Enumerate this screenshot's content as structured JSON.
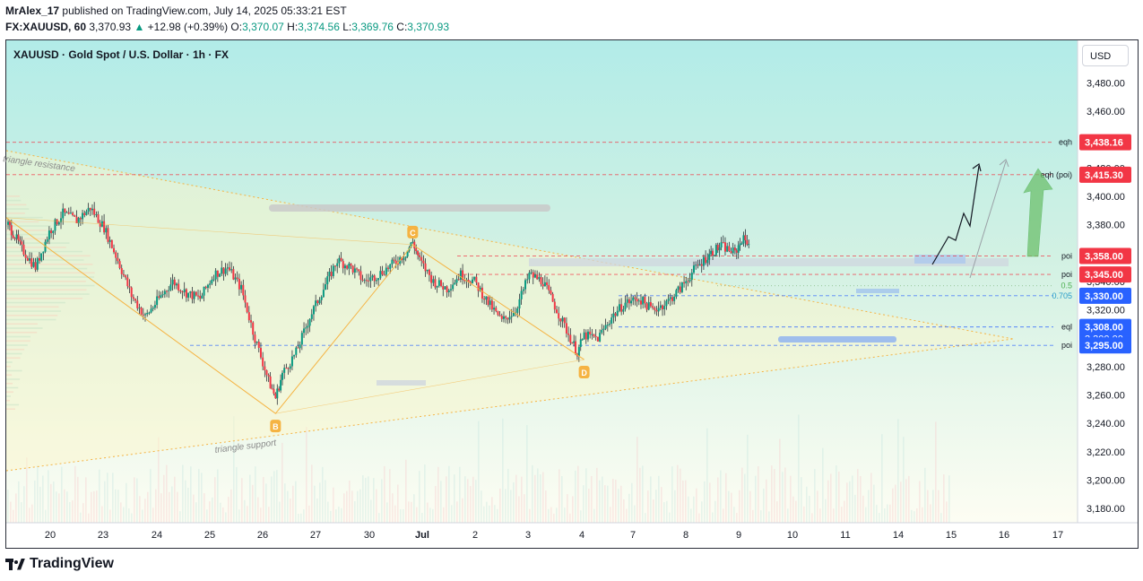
{
  "header": {
    "author": "MrAlex_17",
    "published_text": "published on TradingView.com, July 14, 2025 05:33:21 EST",
    "symbol": "FX:XAUUSD, 60",
    "last": "3,370.93",
    "change_arrow": "▲",
    "change": "+12.98 (+0.39%)",
    "o_label": "O:",
    "o_value": "3,370.07",
    "h_label": "H:",
    "h_value": "3,374.56",
    "l_label": "L:",
    "l_value": "3,369.76",
    "c_label": "C:",
    "c_value": "3,370.93"
  },
  "legend": {
    "title": "XAUUSD · Gold Spot / U.S. Dollar · 1h · FX"
  },
  "currency_button": "USD",
  "footer": {
    "brand": "TradingView"
  },
  "colors": {
    "bull": "#089981",
    "bear": "#f23645",
    "pattern": "#f5b342",
    "red_level": "#f23645",
    "blue_level": "#2962ff",
    "gradient_top": "#b2ece8",
    "gradient_bottom": "#fbfbe6"
  },
  "chart_data": {
    "type": "candlestick",
    "ylim": [
      3170,
      3510
    ],
    "yticks": [
      3180,
      3200,
      3220,
      3240,
      3260,
      3280,
      3300,
      3320,
      3340,
      3360,
      3380,
      3400,
      3420,
      3440,
      3460,
      3480
    ],
    "ytick_labels": [
      "3,180.00",
      "3,200.00",
      "3,220.00",
      "3,240.00",
      "3,260.00",
      "3,280.00",
      "3,300.00",
      "3,320.00",
      "3,340.00",
      "3,360.00",
      "3,380.00",
      "3,400.00",
      "3,420.00",
      "3,440.00",
      "3,460.00",
      "3,480.00"
    ],
    "xticks": [
      "20",
      "23",
      "24",
      "25",
      "26",
      "27",
      "30",
      "Jul",
      "2",
      "3",
      "4",
      "7",
      "8",
      "9",
      "10",
      "11",
      "14",
      "15",
      "16",
      "17"
    ],
    "price_path": [
      [
        0,
        3380
      ],
      [
        0.5,
        3372
      ],
      [
        1,
        3363
      ],
      [
        2,
        3350
      ],
      [
        3,
        3375
      ],
      [
        4,
        3388
      ],
      [
        5,
        3383
      ],
      [
        6,
        3392
      ],
      [
        7,
        3378
      ],
      [
        8,
        3355
      ],
      [
        9,
        3330
      ],
      [
        10,
        3315
      ],
      [
        11,
        3328
      ],
      [
        12,
        3340
      ],
      [
        13,
        3332
      ],
      [
        14,
        3328
      ],
      [
        15,
        3345
      ],
      [
        16,
        3350
      ],
      [
        17,
        3335
      ],
      [
        18,
        3300
      ],
      [
        19,
        3270
      ],
      [
        19.5,
        3258
      ],
      [
        20,
        3275
      ],
      [
        21,
        3290
      ],
      [
        22,
        3315
      ],
      [
        23,
        3335
      ],
      [
        24,
        3355
      ],
      [
        25,
        3350
      ],
      [
        26,
        3340
      ],
      [
        27,
        3345
      ],
      [
        28,
        3352
      ],
      [
        29,
        3360
      ],
      [
        29.5,
        3368
      ],
      [
        30,
        3355
      ],
      [
        31,
        3340
      ],
      [
        32,
        3335
      ],
      [
        33,
        3345
      ],
      [
        34,
        3340
      ],
      [
        35,
        3325
      ],
      [
        36,
        3312
      ],
      [
        37,
        3320
      ],
      [
        38,
        3345
      ],
      [
        39,
        3340
      ],
      [
        40,
        3320
      ],
      [
        41,
        3300
      ],
      [
        41.5,
        3290
      ],
      [
        42,
        3302
      ],
      [
        43,
        3300
      ],
      [
        44,
        3315
      ],
      [
        45,
        3325
      ],
      [
        46,
        3328
      ],
      [
        47,
        3320
      ],
      [
        48,
        3325
      ],
      [
        49,
        3335
      ],
      [
        50,
        3348
      ],
      [
        51,
        3358
      ],
      [
        51.5,
        3362
      ],
      [
        52,
        3365
      ],
      [
        53,
        3360
      ],
      [
        53.5,
        3370
      ],
      [
        54,
        3368
      ]
    ],
    "levels": [
      {
        "label": "eqh",
        "value": 3438.16,
        "tag": "3,438.16",
        "color": "red"
      },
      {
        "label": "eqh (poi)",
        "value": 3415.3,
        "tag": "3,415.30",
        "color": "red"
      },
      {
        "label": "poi",
        "value": 3358.0,
        "tag": "3,358.00",
        "color": "red"
      },
      {
        "label": "poi",
        "value": 3345.0,
        "tag": "3,345.00",
        "color": "red"
      },
      {
        "label": "0.5",
        "value": 3337.0,
        "tag": "",
        "color": "fib"
      },
      {
        "label": "0.705",
        "value": 3330.0,
        "tag": "3,330.00",
        "color": "blue"
      },
      {
        "label": "eql",
        "value": 3308.0,
        "tag": "3,308.00",
        "color": "blue"
      },
      {
        "label": "poi",
        "value": 3295.0,
        "tag": "3,295.00",
        "color": "blue"
      }
    ],
    "hidden_tag": "3,300.00",
    "pattern_points": [
      {
        "label": "B",
        "x": 19.5,
        "value": 3247
      },
      {
        "label": "C",
        "x": 29.5,
        "value": 3366
      },
      {
        "label": "D",
        "x": 42,
        "value": 3285
      }
    ],
    "annotations": [
      "triangle resistance",
      "triangle support"
    ]
  }
}
